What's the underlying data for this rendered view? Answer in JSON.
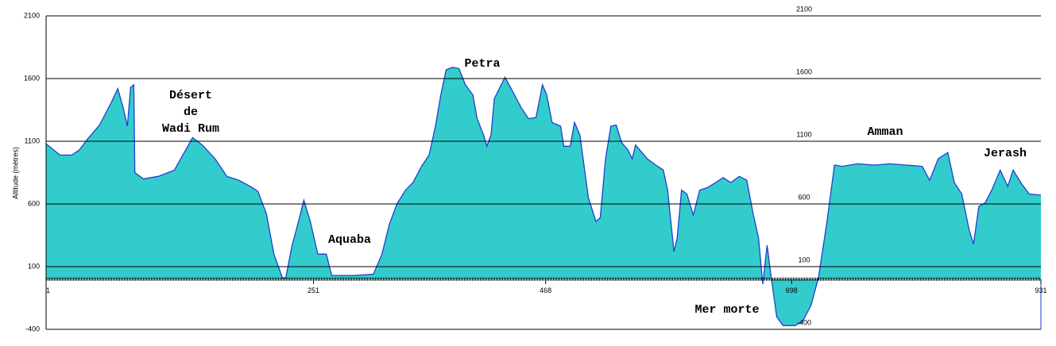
{
  "chart_data": {
    "type": "area",
    "ylabel": "Altitude (mètres)",
    "xlim": [
      1,
      931
    ],
    "ylim": [
      -400,
      2100
    ],
    "xticks": [
      1,
      251,
      468,
      698,
      931
    ],
    "yticks": [
      2100,
      1600,
      1100,
      600,
      100,
      -400
    ],
    "grid": true,
    "annotations": [
      [
        "Désert",
        "de",
        "Wadi Rum"
      ],
      [
        "Aquaba"
      ],
      [
        "Petra"
      ],
      [
        "Mer morte"
      ],
      [
        "Amman"
      ],
      [
        "Jerash"
      ]
    ],
    "series": [
      {
        "color": "#33cccc",
        "line_color": "#1f3fd0",
        "x": [
          1,
          14,
          25,
          32,
          40,
          51,
          62,
          68,
          73,
          77,
          80,
          83,
          84,
          92,
          106,
          121,
          138,
          147,
          159,
          170,
          181,
          192,
          199,
          207,
          214,
          222,
          225,
          231,
          237,
          242,
          248,
          255,
          263,
          268,
          289,
          307,
          315,
          322,
          329,
          337,
          344,
          352,
          359,
          365,
          370,
          375,
          381,
          387,
          393,
          400,
          404,
          410,
          413,
          417,
          420,
          430,
          437,
          445,
          452,
          459,
          465,
          469,
          474,
          482,
          485,
          491,
          495,
          500,
          508,
          515,
          519,
          524,
          529,
          534,
          539,
          545,
          549,
          552,
          556,
          563,
          571,
          578,
          582,
          588,
          591,
          595,
          600,
          606,
          612,
          619,
          627,
          634,
          641,
          649,
          656,
          662,
          667,
          671,
          675,
          679,
          684,
          690,
          701,
          708,
          716,
          723,
          731,
          738,
          745,
          760,
          775,
          790,
          805,
          820,
          827,
          835,
          844,
          850,
          857,
          864,
          868,
          873,
          879,
          885,
          893,
          900,
          905,
          913,
          920,
          931
        ],
        "values": [
          1080,
          990,
          990,
          1030,
          1120,
          1230,
          1410,
          1520,
          1370,
          1220,
          1530,
          1550,
          850,
          800,
          820,
          870,
          1130,
          1070,
          960,
          820,
          790,
          740,
          700,
          520,
          200,
          10,
          10,
          270,
          460,
          630,
          460,
          200,
          200,
          30,
          30,
          40,
          200,
          440,
          600,
          710,
          770,
          900,
          990,
          1220,
          1470,
          1670,
          1690,
          1680,
          1550,
          1470,
          1280,
          1150,
          1060,
          1150,
          1440,
          1610,
          1500,
          1370,
          1280,
          1290,
          1550,
          1470,
          1250,
          1220,
          1060,
          1060,
          1250,
          1150,
          650,
          460,
          490,
          960,
          1220,
          1230,
          1090,
          1030,
          960,
          1070,
          1030,
          960,
          910,
          870,
          710,
          220,
          330,
          710,
          680,
          510,
          710,
          730,
          770,
          810,
          770,
          820,
          790,
          520,
          330,
          -40,
          270,
          10,
          -300,
          -370,
          -370,
          -340,
          -210,
          10,
          460,
          910,
          900,
          920,
          910,
          920,
          910,
          900,
          790,
          960,
          1010,
          770,
          680,
          390,
          280,
          580,
          610,
          710,
          870,
          740,
          870,
          760,
          680,
          670
        ]
      }
    ]
  }
}
